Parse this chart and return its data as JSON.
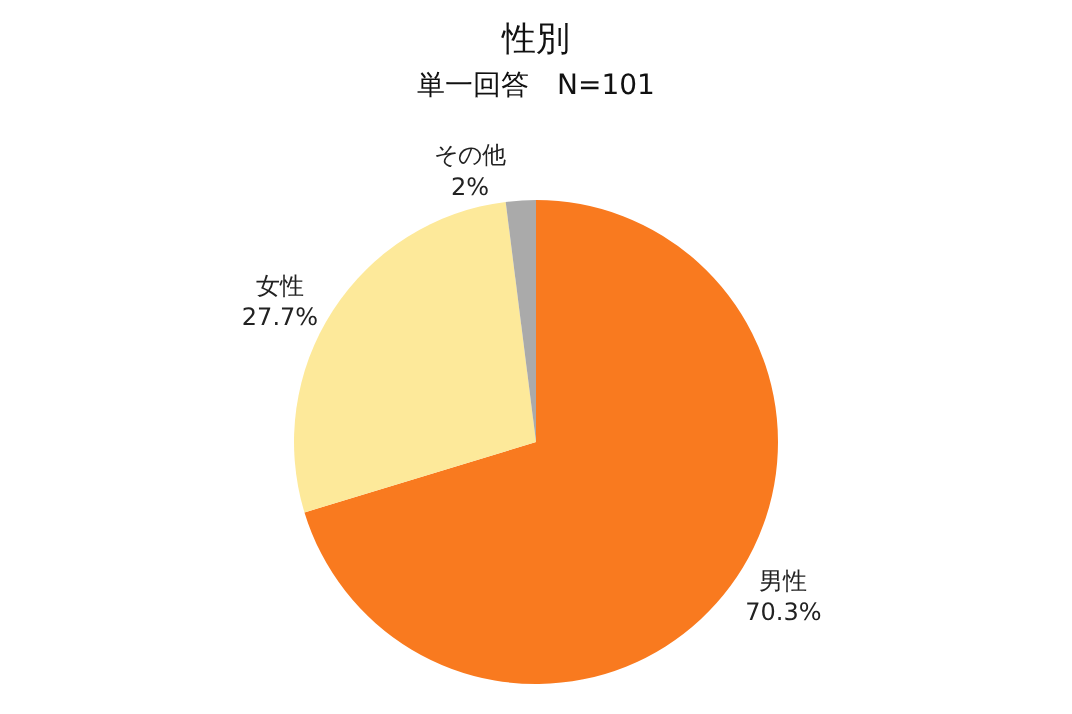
{
  "chart_data": {
    "type": "pie",
    "title": "性別",
    "subtitle": "単一回答　N=101",
    "categories": [
      "男性",
      "女性",
      "その他"
    ],
    "values": [
      70.3,
      27.7,
      2
    ],
    "value_labels": [
      "70.3%",
      "27.7%",
      "2%"
    ],
    "colors": [
      "#f97a1f",
      "#fde99a",
      "#aaaaaa"
    ],
    "legend": false
  }
}
